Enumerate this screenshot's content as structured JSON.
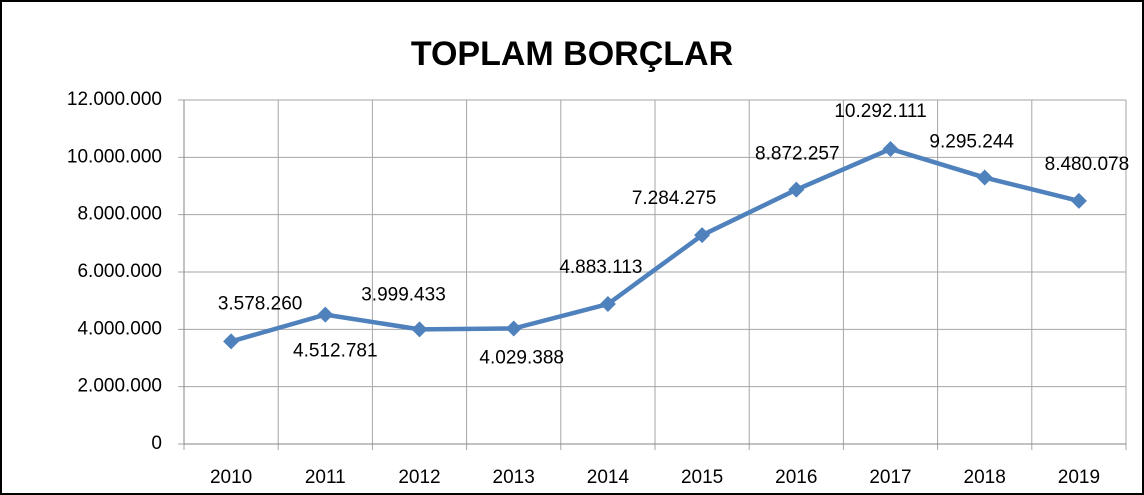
{
  "chart_data": {
    "type": "line",
    "title": "TOPLAM BORÇLAR",
    "categories": [
      "2010",
      "2011",
      "2012",
      "2013",
      "2014",
      "2015",
      "2016",
      "2017",
      "2018",
      "2019"
    ],
    "series": [
      {
        "name": "TOPLAM BORÇLAR",
        "color": "#4f81bd",
        "values": [
          3578260,
          4512781,
          3999433,
          4029388,
          4883113,
          7284275,
          8872257,
          10292111,
          9295244,
          8480078
        ],
        "value_labels": [
          "3.578.260",
          "4.512.781",
          "3.999.433",
          "4.029.388",
          "4.883.113",
          "7.284.275",
          "8.872.257",
          "10.292.111",
          "9.295.244",
          "8.480.078"
        ]
      }
    ],
    "ylim": [
      0,
      12000000
    ],
    "yticks": [
      0,
      {
        "value": 2000000,
        "label": "2.000.000"
      },
      {
        "value": 4000000,
        "label": "4.000.000"
      },
      {
        "value": 6000000,
        "label": "6.000.000"
      },
      {
        "value": 8000000,
        "label": "8.000.000"
      },
      {
        "value": 10000000,
        "label": "10.000.000"
      },
      {
        "value": 12000000,
        "label": "12.000.000"
      }
    ],
    "grid": true,
    "legend": false
  }
}
